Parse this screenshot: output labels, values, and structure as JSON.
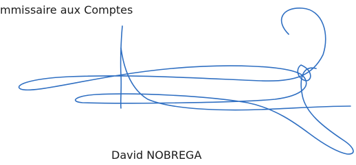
{
  "signature_block": {
    "role": "mmissaire aux Comptes",
    "name": "David NOBREGA"
  }
}
